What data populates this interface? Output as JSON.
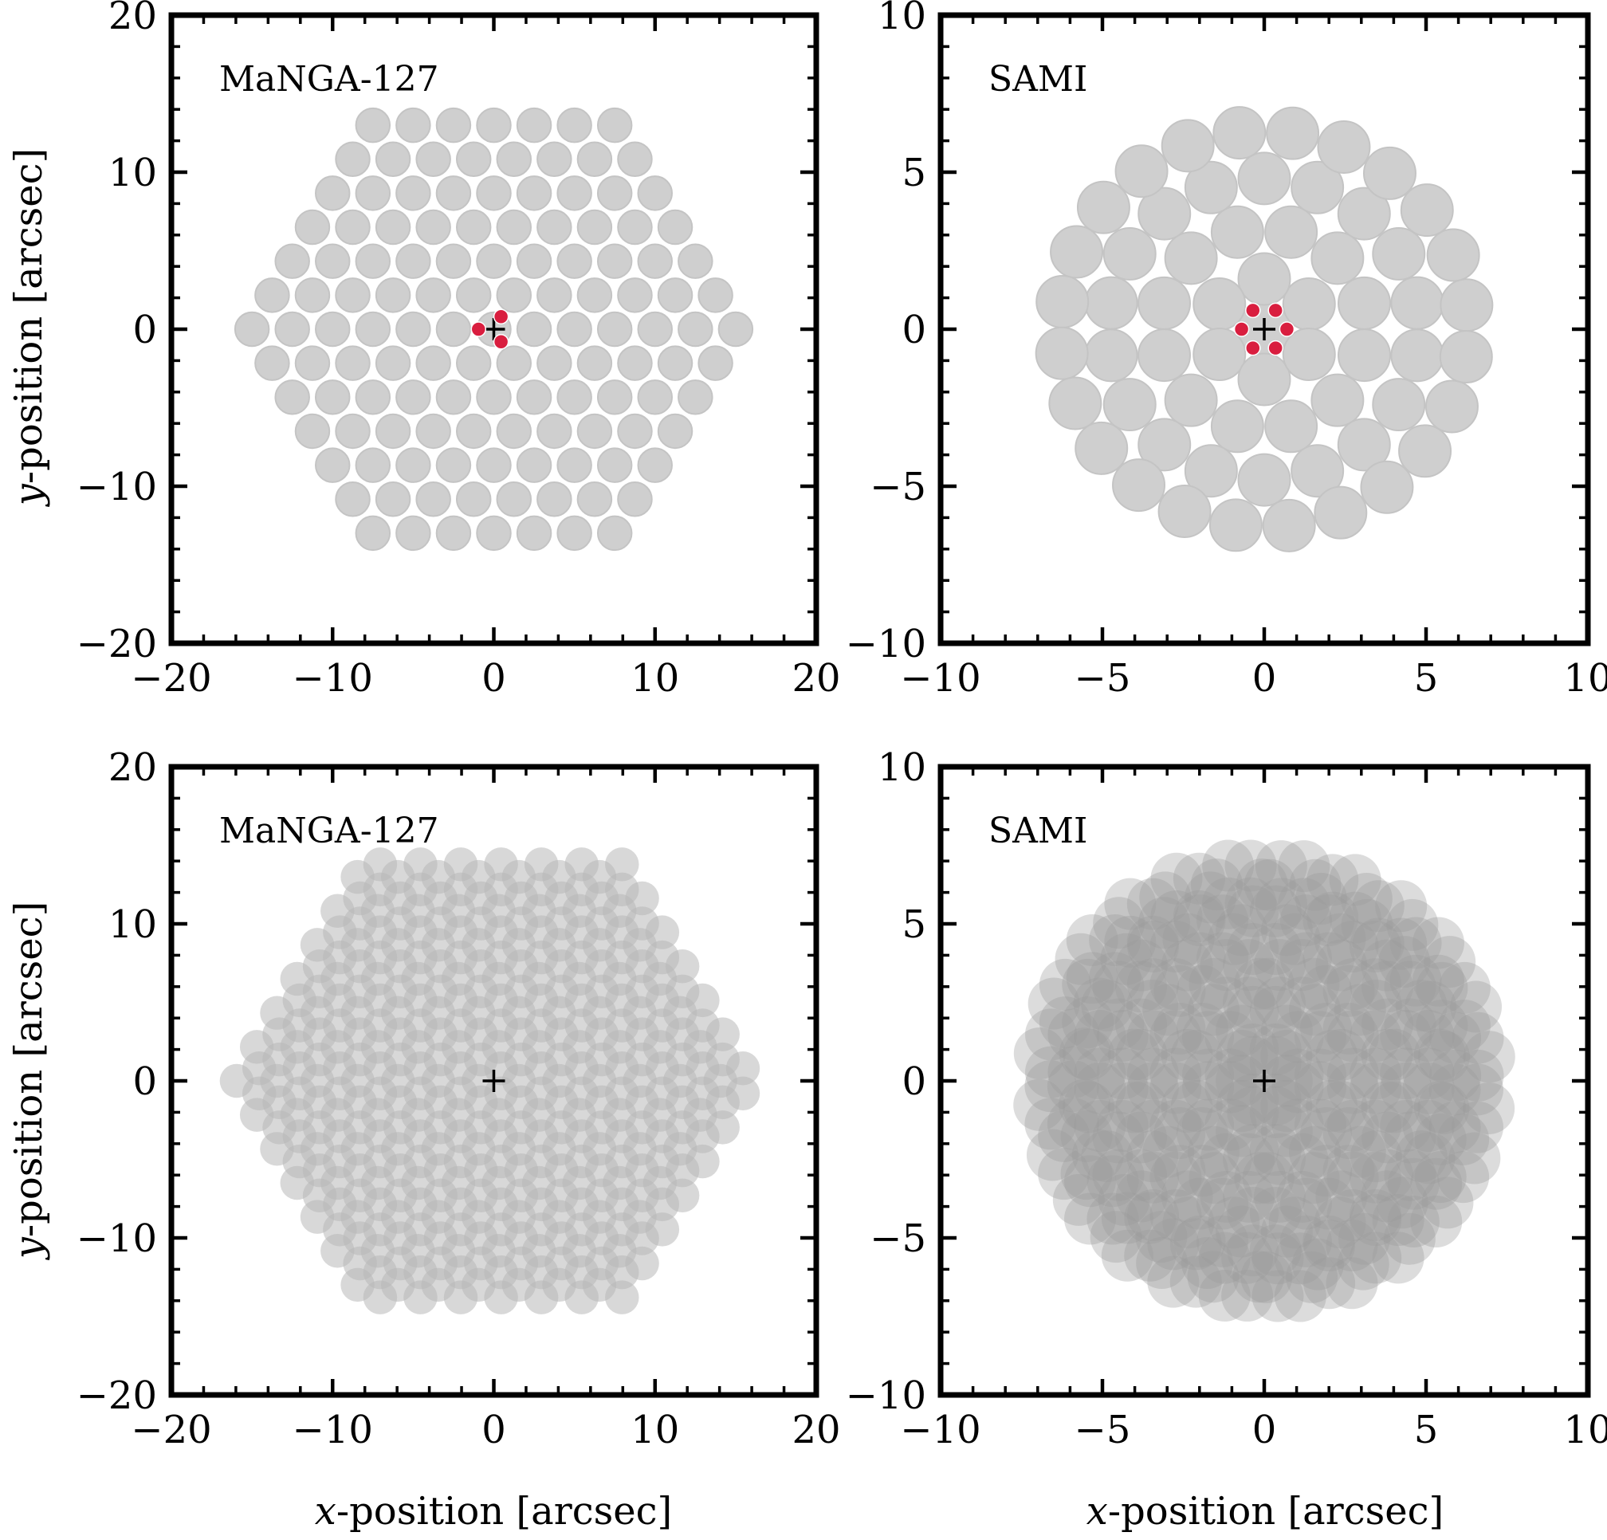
{
  "figure": {
    "axis_labels": {
      "x_var": "x",
      "x_text": "-position [arcsec]",
      "y_var": "y",
      "y_text": "-position [arcsec]"
    }
  },
  "chart_data": [
    {
      "type": "scatter",
      "panel": "top-left",
      "label": "MaNGA-127",
      "layout": "hexagonal",
      "rings": 6,
      "fiber_pitch": 2.5,
      "fiber_diameter": 2.1,
      "fiber_color": "#cfcfcf",
      "dither_offsets": [
        [
          -0.95,
          0.0
        ],
        [
          0.45,
          0.8
        ],
        [
          0.45,
          -0.8
        ]
      ],
      "dither_color": "#d91e3f",
      "center_marker": [
        0,
        0
      ],
      "xlim": [
        -20,
        20
      ],
      "ylim": [
        -20,
        20
      ],
      "xticks": [
        -20,
        -10,
        0,
        10,
        20
      ],
      "yticks": [
        -20,
        -10,
        0,
        10,
        20
      ],
      "xticklabels": [
        "−20",
        "−10",
        "0",
        "10",
        "20"
      ],
      "yticklabels": [
        "−20",
        "−10",
        "0",
        "10",
        "20"
      ],
      "minor_tick_step": 2
    },
    {
      "type": "scatter",
      "panel": "top-right",
      "label": "SAMI",
      "layout": "circular",
      "ring_radii": [
        0.0,
        1.6,
        3.2,
        4.8,
        6.3
      ],
      "ring_counts": [
        1,
        6,
        12,
        18,
        24
      ],
      "ring_phase": [
        0,
        30,
        15,
        10,
        7
      ],
      "fiber_diameter": 1.6,
      "fiber_color": "#cfcfcf",
      "dither_offsets": [
        [
          -0.7,
          0.0
        ],
        [
          0.7,
          0.0
        ],
        [
          -0.35,
          0.6
        ],
        [
          0.35,
          0.6
        ],
        [
          -0.35,
          -0.6
        ],
        [
          0.35,
          -0.6
        ]
      ],
      "dither_color": "#d91e3f",
      "center_marker": [
        0,
        0
      ],
      "xlim": [
        -10,
        10
      ],
      "ylim": [
        -10,
        10
      ],
      "xticks": [
        -10,
        -5,
        0,
        5,
        10
      ],
      "yticks": [
        -10,
        -5,
        0,
        5,
        10
      ],
      "xticklabels": [
        "−10",
        "−5",
        "0",
        "5",
        "10"
      ],
      "yticklabels": [
        "−10",
        "−5",
        "0",
        "5",
        "10"
      ],
      "minor_tick_step": 1
    },
    {
      "type": "scatter",
      "panel": "bottom-left",
      "label": "MaNGA-127",
      "layout": "hexagonal-dithered",
      "rings": 6,
      "fiber_pitch": 2.5,
      "fiber_diameter": 2.1,
      "fiber_color": "#b8b8b8",
      "fiber_opacity": 0.55,
      "dither_offsets": [
        [
          -0.95,
          0.0
        ],
        [
          0.45,
          0.8
        ],
        [
          0.45,
          -0.8
        ]
      ],
      "center_marker": [
        0,
        0
      ],
      "xlim": [
        -20,
        20
      ],
      "ylim": [
        -20,
        20
      ],
      "xticks": [
        -20,
        -10,
        0,
        10,
        20
      ],
      "yticks": [
        -20,
        -10,
        0,
        10,
        20
      ],
      "xticklabels": [
        "−20",
        "−10",
        "0",
        "10",
        "20"
      ],
      "yticklabels": [
        "−20",
        "−10",
        "0",
        "10",
        "20"
      ],
      "minor_tick_step": 2
    },
    {
      "type": "scatter",
      "panel": "bottom-right",
      "label": "SAMI",
      "layout": "circular-dithered",
      "ring_radii": [
        0.0,
        1.6,
        3.2,
        4.8,
        6.3
      ],
      "ring_counts": [
        1,
        6,
        12,
        18,
        24
      ],
      "ring_phase": [
        0,
        30,
        15,
        10,
        7
      ],
      "fiber_diameter": 1.6,
      "fiber_color": "#9a9a9a",
      "fiber_opacity": 0.35,
      "dither_offsets": [
        [
          -0.7,
          0.0
        ],
        [
          0.7,
          0.0
        ],
        [
          -0.35,
          0.6
        ],
        [
          0.35,
          0.6
        ],
        [
          -0.35,
          -0.6
        ],
        [
          0.35,
          -0.6
        ]
      ],
      "center_marker": [
        0,
        0
      ],
      "xlim": [
        -10,
        10
      ],
      "ylim": [
        -10,
        10
      ],
      "xticks": [
        -10,
        -5,
        0,
        5,
        10
      ],
      "yticks": [
        -10,
        -5,
        0,
        5,
        10
      ],
      "xticklabels": [
        "−10",
        "−5",
        "0",
        "5",
        "10"
      ],
      "yticklabels": [
        "−10",
        "−5",
        "0",
        "5",
        "10"
      ],
      "minor_tick_step": 1
    }
  ]
}
